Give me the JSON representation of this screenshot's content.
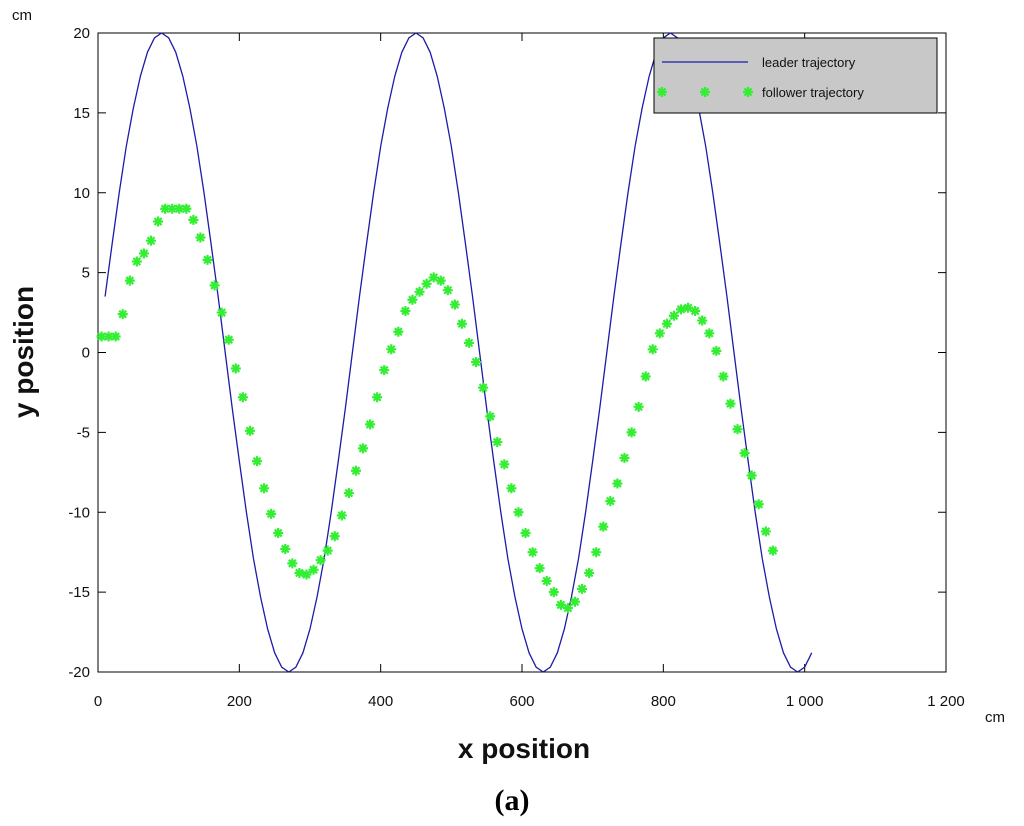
{
  "chart_data": {
    "type": "line",
    "x_label": "x position",
    "y_label": "y position",
    "x_unit": "cm",
    "y_unit": "cm",
    "caption": "(a)",
    "xlim": [
      0,
      1200
    ],
    "ylim": [
      -20,
      20
    ],
    "xticks": [
      0,
      200,
      400,
      600,
      800,
      {
        "value": 1000,
        "label": "1 000"
      },
      {
        "value": 1200,
        "label": "1 200"
      }
    ],
    "yticks": [
      -20,
      -15,
      -10,
      -5,
      0,
      5,
      10,
      15,
      20
    ],
    "legend": "upper right",
    "series": [
      {
        "name": "leader trajectory",
        "color": "#1c1ca8",
        "style": "line",
        "x": [
          10,
          20,
          30,
          40,
          50,
          60,
          70,
          80,
          90,
          100,
          110,
          120,
          130,
          140,
          150,
          160,
          170,
          180,
          190,
          200,
          210,
          220,
          230,
          240,
          250,
          260,
          270,
          280,
          290,
          300,
          310,
          320,
          330,
          340,
          350,
          360,
          370,
          380,
          390,
          400,
          410,
          420,
          430,
          440,
          450,
          460,
          470,
          480,
          490,
          500,
          510,
          520,
          530,
          540,
          550,
          560,
          570,
          580,
          590,
          600,
          610,
          620,
          630,
          640,
          650,
          660,
          670,
          680,
          690,
          700,
          710,
          720,
          730,
          740,
          750,
          760,
          770,
          780,
          790,
          800,
          810,
          820,
          830,
          840,
          850,
          860,
          870,
          880,
          890,
          900,
          910,
          920,
          930,
          940,
          950,
          960,
          970,
          980,
          990,
          1000,
          1010
        ],
        "values": [
          3.5,
          6.8,
          10,
          12.9,
          15.3,
          17.3,
          18.8,
          19.7,
          20,
          19.7,
          18.8,
          17.3,
          15.3,
          12.9,
          10,
          6.8,
          3.5,
          0,
          -3.5,
          -6.8,
          -10,
          -12.9,
          -15.3,
          -17.3,
          -18.8,
          -19.7,
          -20,
          -19.7,
          -18.8,
          -17.3,
          -15.3,
          -12.9,
          -10,
          -6.8,
          -3.5,
          0,
          3.5,
          6.8,
          10,
          12.9,
          15.3,
          17.3,
          18.8,
          19.7,
          20,
          19.7,
          18.8,
          17.3,
          15.3,
          12.9,
          10,
          6.8,
          3.5,
          0,
          -3.5,
          -6.8,
          -10,
          -12.9,
          -15.3,
          -17.3,
          -18.8,
          -19.7,
          -20,
          -19.7,
          -18.8,
          -17.3,
          -15.3,
          -12.9,
          -10,
          -6.8,
          -3.5,
          0,
          3.5,
          6.8,
          10,
          12.9,
          15.3,
          17.3,
          18.8,
          19.7,
          20,
          19.7,
          18.8,
          17.3,
          15.3,
          12.9,
          10,
          6.8,
          3.5,
          0,
          -3.5,
          -6.8,
          -10,
          -12.9,
          -15.3,
          -17.3,
          -18.8,
          -19.7,
          -20,
          -19.7,
          -18.8
        ]
      },
      {
        "name": "follower trajectory",
        "color": "#33ee33",
        "style": "markers",
        "x": [
          5,
          15,
          25,
          35,
          45,
          55,
          65,
          75,
          85,
          95,
          105,
          115,
          125,
          135,
          145,
          155,
          165,
          175,
          185,
          195,
          205,
          215,
          225,
          235,
          245,
          255,
          265,
          275,
          285,
          295,
          305,
          315,
          325,
          335,
          345,
          355,
          365,
          375,
          385,
          395,
          405,
          415,
          425,
          435,
          445,
          455,
          465,
          475,
          485,
          495,
          505,
          515,
          525,
          535,
          545,
          555,
          565,
          575,
          585,
          595,
          605,
          615,
          625,
          635,
          645,
          655,
          665,
          675,
          685,
          695,
          705,
          715,
          725,
          735,
          745,
          755,
          765,
          775,
          785,
          795,
          805,
          815,
          825,
          835,
          845,
          855,
          865,
          875,
          885,
          895,
          905,
          915,
          925,
          935,
          945,
          955
        ],
        "values": [
          1,
          1,
          1,
          2.4,
          4.5,
          5.7,
          6.2,
          7,
          8.2,
          9,
          9,
          9,
          9,
          8.3,
          7.2,
          5.8,
          4.2,
          2.5,
          0.8,
          -1,
          -2.8,
          -4.9,
          -6.8,
          -8.5,
          -10.1,
          -11.3,
          -12.3,
          -13.2,
          -13.8,
          -13.9,
          -13.6,
          -13,
          -12.4,
          -11.5,
          -10.2,
          -8.8,
          -7.4,
          -6,
          -4.5,
          -2.8,
          -1.1,
          0.2,
          1.3,
          2.6,
          3.3,
          3.8,
          4.3,
          4.7,
          4.5,
          3.9,
          3,
          1.8,
          0.6,
          -0.6,
          -2.2,
          -4,
          -5.6,
          -7,
          -8.5,
          -10,
          -11.3,
          -12.5,
          -13.5,
          -14.3,
          -15,
          -15.8,
          -16,
          -15.6,
          -14.8,
          -13.8,
          -12.5,
          -10.9,
          -9.3,
          -8.2,
          -6.6,
          -5,
          -3.4,
          -1.5,
          0.2,
          1.2,
          1.8,
          2.3,
          2.7,
          2.8,
          2.6,
          2,
          1.2,
          0.1,
          -1.5,
          -3.2,
          -4.8,
          -6.3,
          -7.7,
          -9.5,
          -11.2,
          -12.4
        ]
      }
    ]
  }
}
